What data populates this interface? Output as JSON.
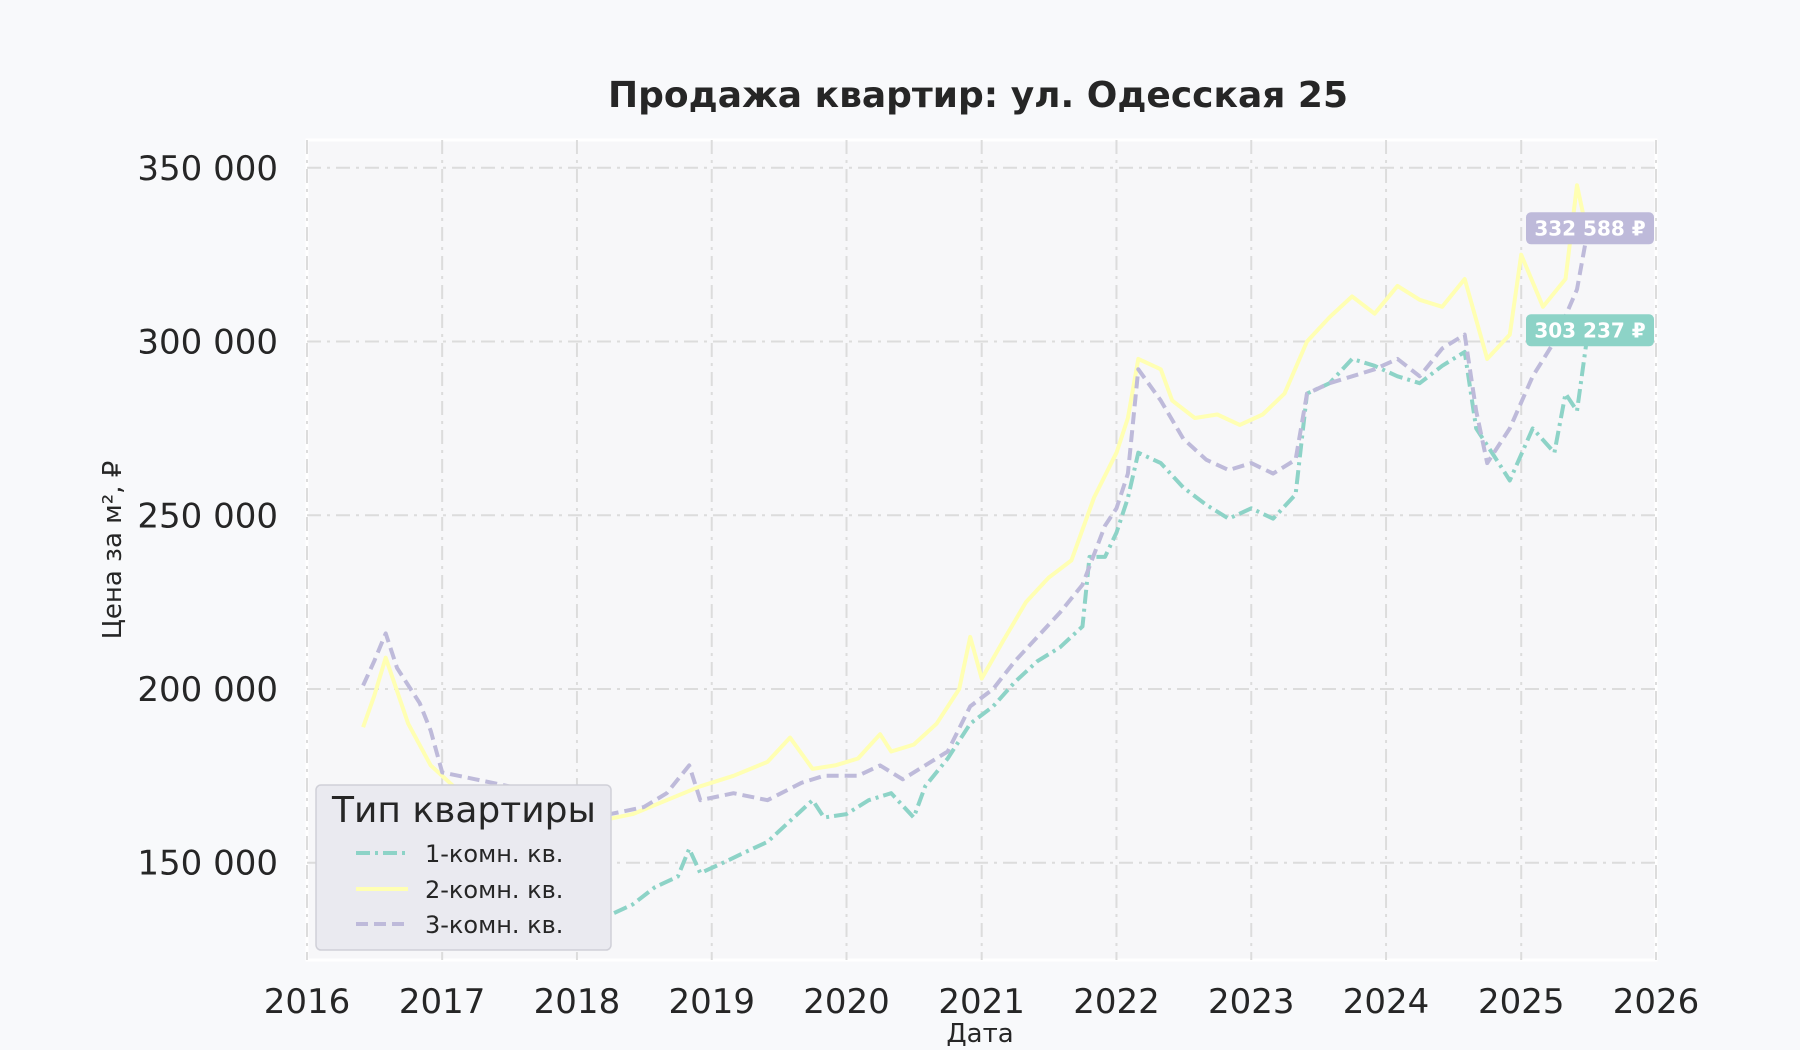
{
  "colors": {
    "background": "#f8f9fb",
    "plot_bg": "#f7f7f9",
    "grid": "#dcdcdc",
    "text": "#262626",
    "series_1": "#8dd3c7",
    "series_2": "#ffffb3",
    "series_3": "#bebada"
  },
  "chart_data": {
    "type": "line",
    "title": "Продажа квартир: ул. Одесская 25",
    "xlabel": "Дата",
    "ylabel": "Цена за м², ₽",
    "xlim": [
      "2016-01-01",
      "2026-01-01"
    ],
    "ylim": [
      122000,
      358000
    ],
    "x_ticks": [
      "2016",
      "2017",
      "2018",
      "2019",
      "2020",
      "2021",
      "2022",
      "2023",
      "2024",
      "2025",
      "2026"
    ],
    "y_ticks": [
      150000,
      200000,
      250000,
      300000,
      350000
    ],
    "y_tick_labels": [
      "150 000",
      "200 000",
      "250 000",
      "300 000",
      "350 000"
    ],
    "grid": true,
    "legend": {
      "title": "Тип квартиры",
      "position": "bottom-left"
    },
    "series": [
      {
        "name": "1-комн. кв.",
        "style": "dash-dot",
        "color": "#8dd3c7",
        "end_label": "303 237 ₽",
        "points": [
          [
            "2016-06-01",
            158000
          ],
          [
            "2016-07-01",
            155000
          ],
          [
            "2016-09-01",
            150000
          ],
          [
            "2016-12-01",
            148000
          ],
          [
            "2017-03-01",
            146000
          ],
          [
            "2017-06-01",
            143000
          ],
          [
            "2017-09-01",
            140000
          ],
          [
            "2017-12-01",
            137000
          ],
          [
            "2018-02-01",
            134000
          ],
          [
            "2018-04-01",
            135000
          ],
          [
            "2018-06-01",
            138000
          ],
          [
            "2018-08-01",
            143000
          ],
          [
            "2018-10-01",
            146000
          ],
          [
            "2018-11-01",
            154000
          ],
          [
            "2018-12-01",
            147000
          ],
          [
            "2019-02-01",
            150000
          ],
          [
            "2019-04-01",
            153000
          ],
          [
            "2019-06-01",
            156000
          ],
          [
            "2019-08-01",
            162000
          ],
          [
            "2019-10-01",
            168000
          ],
          [
            "2019-11-01",
            163000
          ],
          [
            "2020-01-01",
            164000
          ],
          [
            "2020-03-01",
            168000
          ],
          [
            "2020-05-01",
            170000
          ],
          [
            "2020-07-01",
            163000
          ],
          [
            "2020-08-01",
            172000
          ],
          [
            "2020-10-01",
            180000
          ],
          [
            "2020-12-01",
            190000
          ],
          [
            "2021-02-01",
            195000
          ],
          [
            "2021-04-01",
            202000
          ],
          [
            "2021-06-01",
            208000
          ],
          [
            "2021-08-01",
            212000
          ],
          [
            "2021-10-01",
            218000
          ],
          [
            "2021-10-20",
            238000
          ],
          [
            "2021-12-01",
            238000
          ],
          [
            "2022-01-01",
            245000
          ],
          [
            "2022-02-01",
            255000
          ],
          [
            "2022-03-01",
            268000
          ],
          [
            "2022-05-01",
            265000
          ],
          [
            "2022-07-01",
            258000
          ],
          [
            "2022-09-01",
            253000
          ],
          [
            "2022-11-01",
            249000
          ],
          [
            "2023-01-01",
            252000
          ],
          [
            "2023-03-01",
            249000
          ],
          [
            "2023-05-01",
            256000
          ],
          [
            "2023-06-01",
            285000
          ],
          [
            "2023-08-01",
            288000
          ],
          [
            "2023-10-01",
            295000
          ],
          [
            "2023-12-01",
            293000
          ],
          [
            "2024-02-01",
            290000
          ],
          [
            "2024-04-01",
            288000
          ],
          [
            "2024-06-01",
            293000
          ],
          [
            "2024-08-01",
            297000
          ],
          [
            "2024-09-01",
            275000
          ],
          [
            "2024-11-01",
            265000
          ],
          [
            "2024-12-01",
            260000
          ],
          [
            "2025-02-01",
            275000
          ],
          [
            "2025-04-01",
            268000
          ],
          [
            "2025-05-01",
            285000
          ],
          [
            "2025-06-01",
            280000
          ],
          [
            "2025-07-01",
            303237
          ]
        ]
      },
      {
        "name": "2-комн. кв.",
        "style": "solid",
        "color": "#ffffb3",
        "end_label": "",
        "points": [
          [
            "2016-06-01",
            189000
          ],
          [
            "2016-07-01",
            198000
          ],
          [
            "2016-08-01",
            209000
          ],
          [
            "2016-10-01",
            190000
          ],
          [
            "2016-12-01",
            178000
          ],
          [
            "2017-02-01",
            172000
          ],
          [
            "2017-05-01",
            169000
          ],
          [
            "2017-08-01",
            168000
          ],
          [
            "2017-11-01",
            165000
          ],
          [
            "2018-01-01",
            163000
          ],
          [
            "2018-03-01",
            162000
          ],
          [
            "2018-06-01",
            164000
          ],
          [
            "2018-09-01",
            168000
          ],
          [
            "2018-12-01",
            172000
          ],
          [
            "2019-03-01",
            175000
          ],
          [
            "2019-06-01",
            179000
          ],
          [
            "2019-08-01",
            186000
          ],
          [
            "2019-10-01",
            177000
          ],
          [
            "2019-12-01",
            178000
          ],
          [
            "2020-02-01",
            180000
          ],
          [
            "2020-04-01",
            187000
          ],
          [
            "2020-05-01",
            182000
          ],
          [
            "2020-07-01",
            184000
          ],
          [
            "2020-09-01",
            190000
          ],
          [
            "2020-11-01",
            200000
          ],
          [
            "2020-12-01",
            215000
          ],
          [
            "2021-01-01",
            203000
          ],
          [
            "2021-03-01",
            214000
          ],
          [
            "2021-05-01",
            225000
          ],
          [
            "2021-07-01",
            232000
          ],
          [
            "2021-09-01",
            237000
          ],
          [
            "2021-11-01",
            255000
          ],
          [
            "2022-01-01",
            268000
          ],
          [
            "2022-02-01",
            278000
          ],
          [
            "2022-03-01",
            295000
          ],
          [
            "2022-05-01",
            292000
          ],
          [
            "2022-06-01",
            283000
          ],
          [
            "2022-08-01",
            278000
          ],
          [
            "2022-10-01",
            279000
          ],
          [
            "2022-12-01",
            276000
          ],
          [
            "2023-02-01",
            279000
          ],
          [
            "2023-04-01",
            285000
          ],
          [
            "2023-06-01",
            300000
          ],
          [
            "2023-08-01",
            307000
          ],
          [
            "2023-10-01",
            313000
          ],
          [
            "2023-12-01",
            308000
          ],
          [
            "2024-02-01",
            316000
          ],
          [
            "2024-04-01",
            312000
          ],
          [
            "2024-06-01",
            310000
          ],
          [
            "2024-08-01",
            318000
          ],
          [
            "2024-10-01",
            295000
          ],
          [
            "2024-12-01",
            302000
          ],
          [
            "2025-01-01",
            325000
          ],
          [
            "2025-03-01",
            310000
          ],
          [
            "2025-05-01",
            318000
          ],
          [
            "2025-06-01",
            345000
          ],
          [
            "2025-07-01",
            330000
          ]
        ]
      },
      {
        "name": "3-комн. кв.",
        "style": "dashed",
        "color": "#bebada",
        "end_label": "332 588 ₽",
        "points": [
          [
            "2016-06-01",
            201000
          ],
          [
            "2016-07-01",
            208000
          ],
          [
            "2016-08-01",
            216000
          ],
          [
            "2016-09-01",
            206000
          ],
          [
            "2016-11-01",
            196000
          ],
          [
            "2016-12-01",
            188000
          ],
          [
            "2017-01-01",
            176000
          ],
          [
            "2017-04-01",
            174000
          ],
          [
            "2017-07-01",
            172000
          ],
          [
            "2017-10-01",
            170000
          ],
          [
            "2018-01-01",
            166000
          ],
          [
            "2018-04-01",
            164000
          ],
          [
            "2018-07-01",
            166000
          ],
          [
            "2018-09-01",
            170000
          ],
          [
            "2018-11-01",
            178000
          ],
          [
            "2018-12-01",
            168000
          ],
          [
            "2019-03-01",
            170000
          ],
          [
            "2019-06-01",
            168000
          ],
          [
            "2019-09-01",
            173000
          ],
          [
            "2019-11-01",
            175000
          ],
          [
            "2020-02-01",
            175000
          ],
          [
            "2020-04-01",
            178000
          ],
          [
            "2020-06-01",
            174000
          ],
          [
            "2020-08-01",
            178000
          ],
          [
            "2020-10-01",
            182000
          ],
          [
            "2020-12-01",
            195000
          ],
          [
            "2021-02-01",
            200000
          ],
          [
            "2021-04-01",
            208000
          ],
          [
            "2021-06-01",
            215000
          ],
          [
            "2021-08-01",
            222000
          ],
          [
            "2021-10-01",
            230000
          ],
          [
            "2021-12-01",
            247000
          ],
          [
            "2022-01-01",
            252000
          ],
          [
            "2022-02-01",
            262000
          ],
          [
            "2022-03-01",
            292000
          ],
          [
            "2022-05-01",
            283000
          ],
          [
            "2022-07-01",
            272000
          ],
          [
            "2022-09-01",
            266000
          ],
          [
            "2022-11-01",
            263000
          ],
          [
            "2023-01-01",
            265000
          ],
          [
            "2023-03-01",
            262000
          ],
          [
            "2023-05-01",
            266000
          ],
          [
            "2023-06-01",
            285000
          ],
          [
            "2023-08-01",
            288000
          ],
          [
            "2023-10-01",
            290000
          ],
          [
            "2023-12-01",
            292000
          ],
          [
            "2024-02-01",
            295000
          ],
          [
            "2024-04-01",
            290000
          ],
          [
            "2024-06-01",
            298000
          ],
          [
            "2024-08-01",
            302000
          ],
          [
            "2024-09-01",
            280000
          ],
          [
            "2024-10-01",
            265000
          ],
          [
            "2024-12-01",
            275000
          ],
          [
            "2025-02-01",
            290000
          ],
          [
            "2025-04-01",
            300000
          ],
          [
            "2025-06-01",
            315000
          ],
          [
            "2025-07-01",
            332588
          ]
        ]
      }
    ]
  }
}
